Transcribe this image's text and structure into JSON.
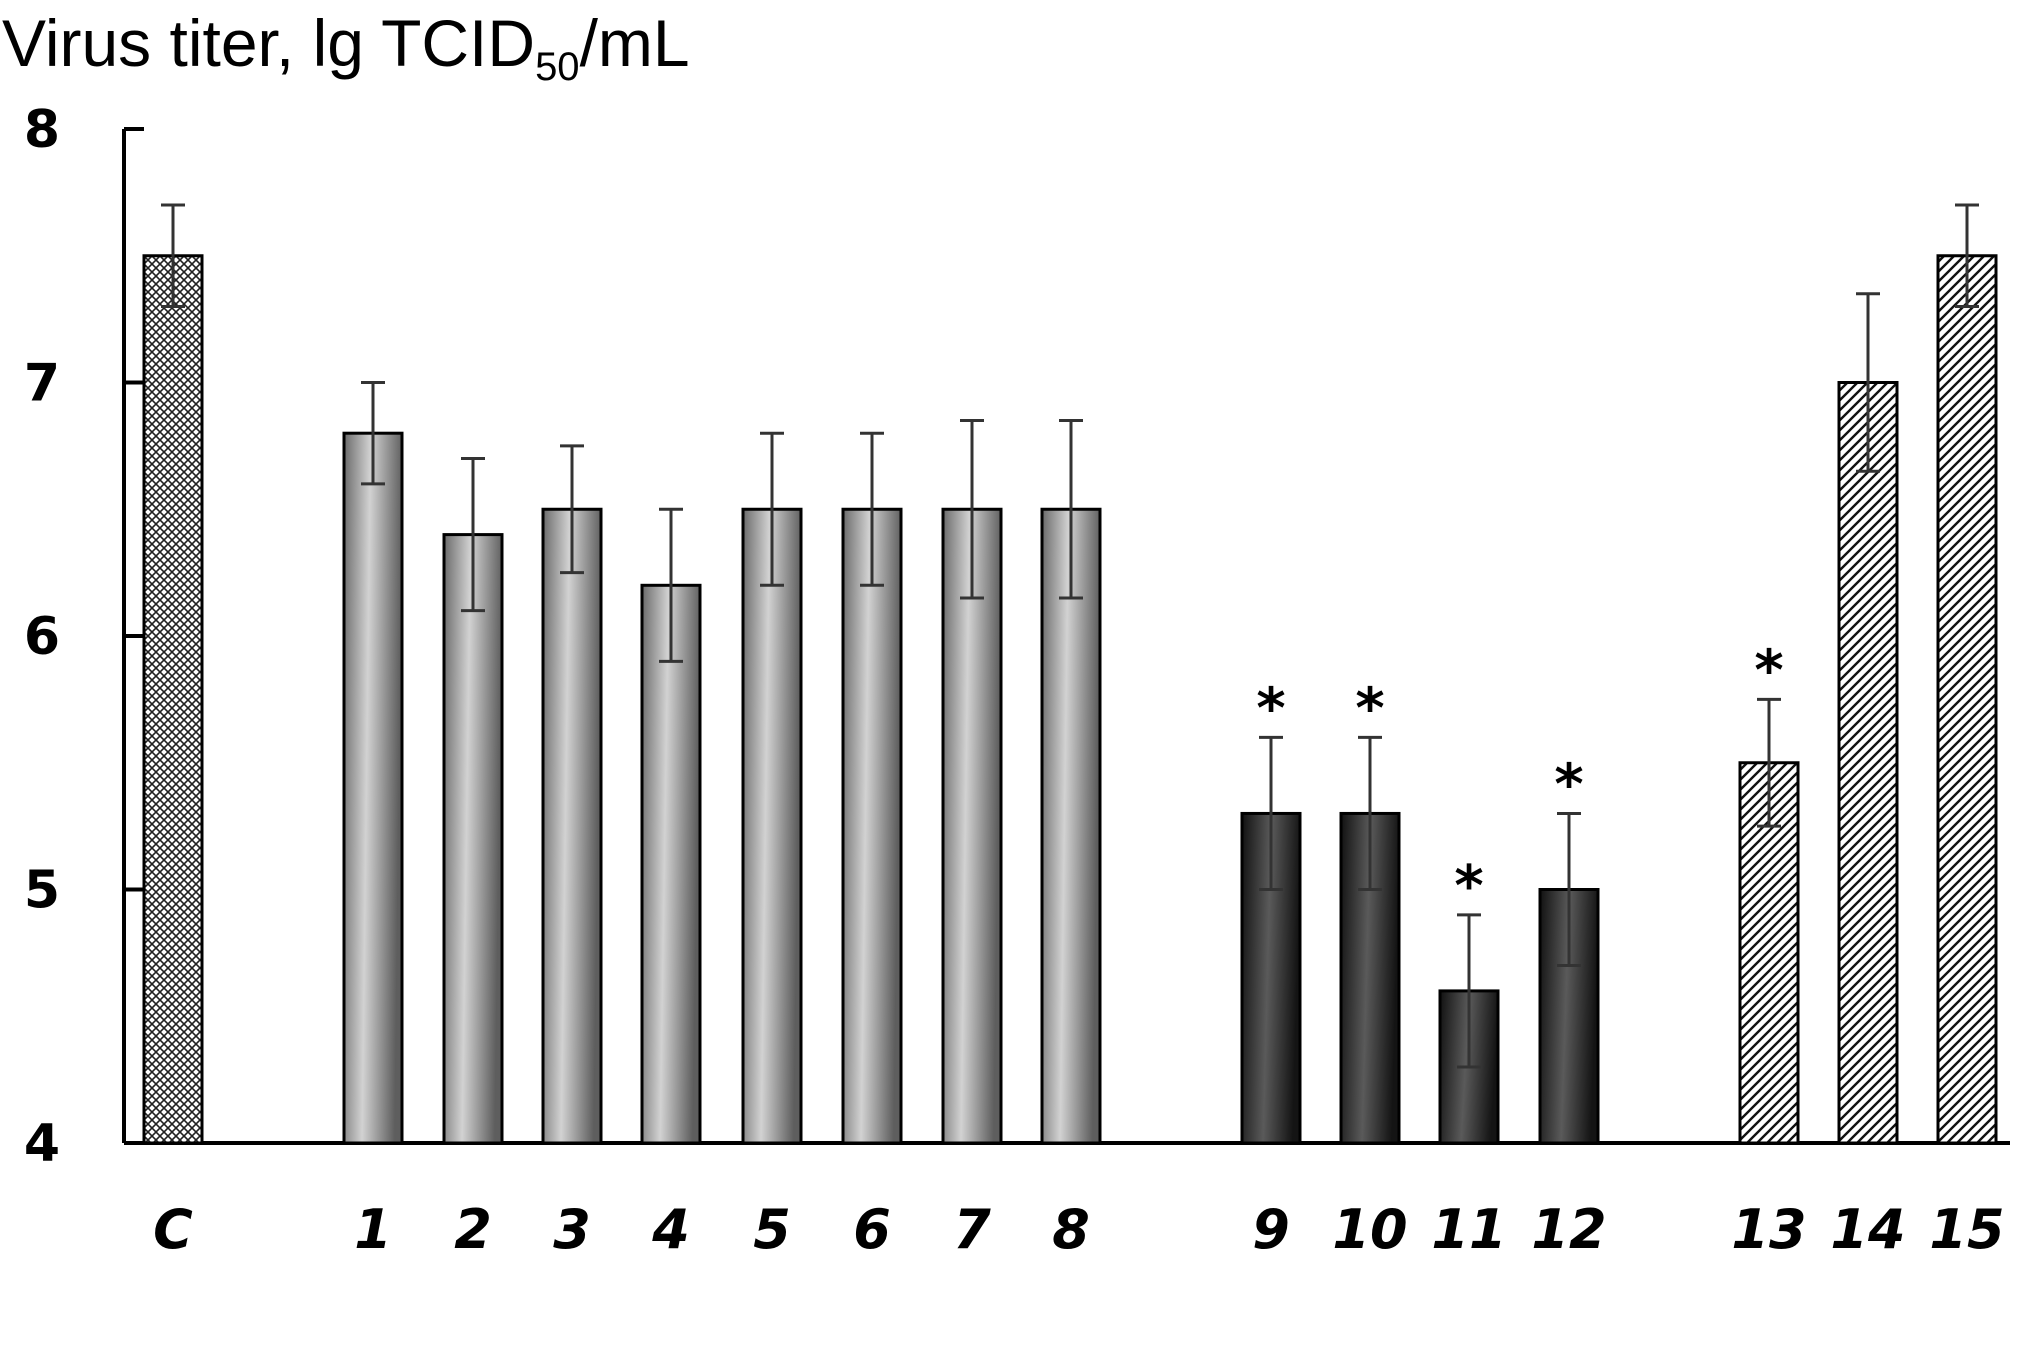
{
  "chart_data": {
    "type": "bar",
    "ylabel_main": "Virus titer, lg TCID",
    "ylabel_sub": "50",
    "ylabel_unit": "/mL",
    "ylim": [
      4,
      8
    ],
    "yticks": [
      "8",
      "7",
      "6",
      "5",
      "4"
    ],
    "ytick_values": [
      8,
      7,
      6,
      5,
      4
    ],
    "categories": [
      "C",
      "1",
      "2",
      "3",
      "4",
      "5",
      "6",
      "7",
      "8",
      "9",
      "10",
      "11",
      "12",
      "13",
      "14",
      "15"
    ],
    "values": [
      7.5,
      6.8,
      6.4,
      6.5,
      6.2,
      6.5,
      6.5,
      6.5,
      6.5,
      5.3,
      5.3,
      4.6,
      5.0,
      5.5,
      7.0,
      7.5
    ],
    "errors": [
      0.2,
      0.2,
      0.3,
      0.25,
      0.3,
      0.3,
      0.3,
      0.35,
      0.35,
      0.3,
      0.3,
      0.3,
      0.3,
      0.25,
      0.35,
      0.2
    ],
    "significance_marker": "*",
    "significant": [
      false,
      false,
      false,
      false,
      false,
      false,
      false,
      false,
      false,
      true,
      true,
      true,
      true,
      true,
      false,
      false
    ],
    "styles": [
      "crosshatch",
      "gradient-light",
      "gradient-light",
      "gradient-light",
      "gradient-light",
      "gradient-light",
      "gradient-light",
      "gradient-light",
      "gradient-light",
      "gradient-dark",
      "gradient-dark",
      "gradient-dark",
      "gradient-dark",
      "hatch",
      "hatch",
      "hatch"
    ],
    "grid": false
  }
}
